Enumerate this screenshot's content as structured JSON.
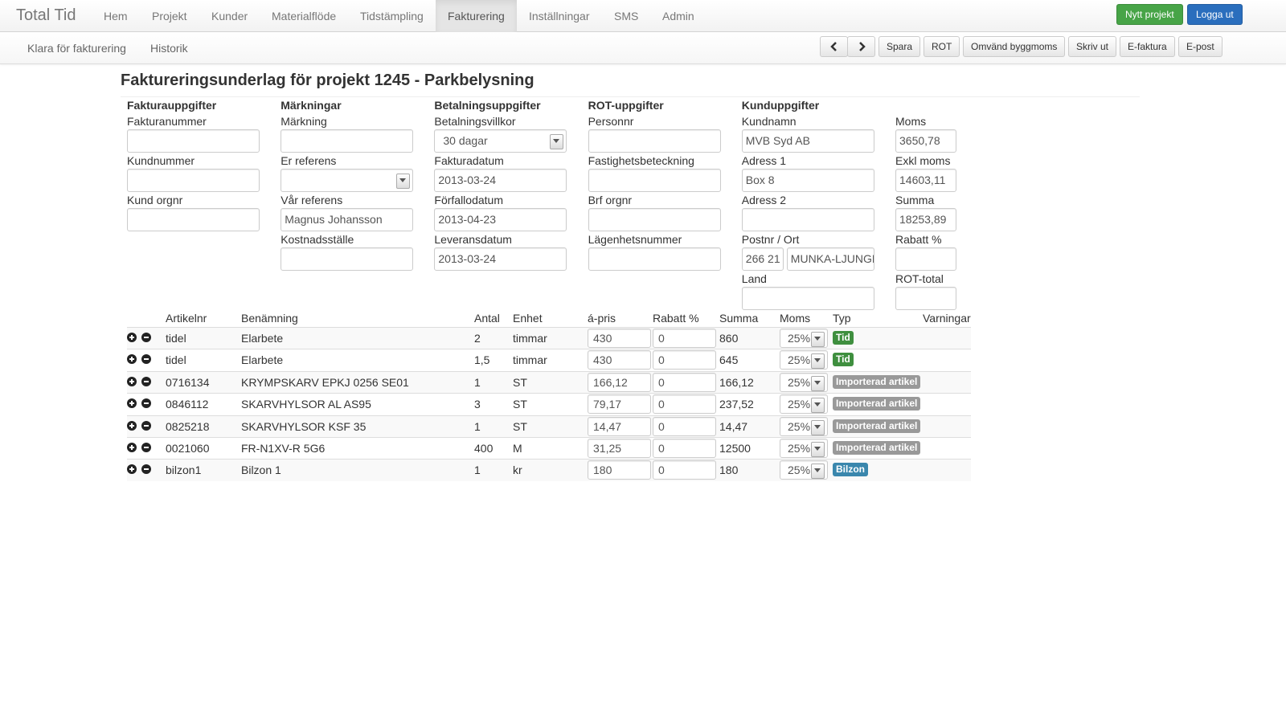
{
  "navbar": {
    "brand": "Total Tid",
    "items": [
      "Hem",
      "Projekt",
      "Kunder",
      "Materialflöde",
      "Tidstämpling",
      "Fakturering",
      "Inställningar",
      "SMS",
      "Admin"
    ],
    "active": 5,
    "buttons": [
      {
        "label": "Nytt projekt",
        "color": "#47a447"
      },
      {
        "label": "Logga ut",
        "color": "#2a6ebd"
      }
    ]
  },
  "subnav": {
    "items": [
      "Klara för fakturering",
      "Historik"
    ],
    "buttons": [
      "Spara",
      "ROT",
      "Omvänd byggmoms",
      "Skriv ut",
      "E-faktura",
      "E-post"
    ]
  },
  "title": "Faktureringsunderlag för projekt 1245 - Parkbelysning",
  "form": {
    "columns": [
      {
        "heading": "Fakturauppgifter",
        "fields": [
          {
            "label": "Fakturanummer"
          },
          {
            "label": "Kundnummer"
          },
          {
            "label": "Kund orgnr"
          }
        ]
      },
      {
        "heading": "Märkningar",
        "fields": [
          {
            "label": "Märkning"
          },
          {
            "label": "Er referens",
            "select": true
          },
          {
            "label": "Vår referens",
            "value": "Magnus Johansson"
          },
          {
            "label": "Kostnadsställe"
          }
        ]
      },
      {
        "heading": "Betalningsuppgifter",
        "fields": [
          {
            "label": "Betalningsvillkor",
            "select": true,
            "value": "30 dagar"
          },
          {
            "label": "Fakturadatum",
            "value": "2013-03-24"
          },
          {
            "label": "Förfallodatum",
            "value": "2013-04-23"
          },
          {
            "label": "Leveransdatum",
            "value": "2013-03-24"
          }
        ]
      },
      {
        "heading": "ROT-uppgifter",
        "fields": [
          {
            "label": "Personnr"
          },
          {
            "label": "Fastighetsbeteckning"
          },
          {
            "label": "Brf orgnr"
          },
          {
            "label": "Lägenhetsnummer"
          }
        ]
      },
      {
        "heading": "Kunduppgifter",
        "fields": [
          {
            "label": "Kundnamn",
            "value": "MVB Syd AB"
          },
          {
            "label": "Adress 1",
            "value": "Box 8"
          },
          {
            "label": "Adress 2"
          },
          {
            "label": "Postnr / Ort",
            "values": [
              "266 21",
              "MUNKA-LJUNGBY"
            ]
          },
          {
            "label": "Land"
          }
        ]
      },
      {
        "fields": [
          {
            "label": "Moms",
            "value": "3650,78"
          },
          {
            "label": "Exkl moms",
            "value": "14603,11"
          },
          {
            "label": "Summa",
            "value": "18253,89"
          },
          {
            "label": "Rabatt %"
          },
          {
            "label": "ROT-total"
          }
        ]
      }
    ]
  },
  "table": {
    "headers": [
      "Artikelnr",
      "Benämning",
      "Antal",
      "Enhet",
      "á-pris",
      "Rabatt %",
      "Summa",
      "Moms",
      "Typ",
      "Varningar"
    ],
    "rows": [
      {
        "cells": [
          "tidel",
          "Elarbete",
          "2",
          "timmar",
          "430",
          "0",
          "860",
          "25%",
          "Tid"
        ],
        "badge_color": "#3f8f3f"
      },
      {
        "cells": [
          "tidel",
          "Elarbete",
          "1,5",
          "timmar",
          "430",
          "0",
          "645",
          "25%",
          "Tid"
        ],
        "badge_color": "#3f8f3f"
      },
      {
        "cells": [
          "0716134",
          "KRYMPSKARV EPKJ 0256 SE01",
          "1",
          "ST",
          "166,12",
          "0",
          "166,12",
          "25%",
          "Importerad artikel"
        ],
        "badge_color": "#999999"
      },
      {
        "cells": [
          "0846112",
          "SKARVHYLSOR AL AS95",
          "3",
          "ST",
          "79,17",
          "0",
          "237,52",
          "25%",
          "Importerad artikel"
        ],
        "badge_color": "#999999"
      },
      {
        "cells": [
          "0825218",
          "SKARVHYLSOR KSF 35",
          "1",
          "ST",
          "14,47",
          "0",
          "14,47",
          "25%",
          "Importerad artikel"
        ],
        "badge_color": "#999999"
      },
      {
        "cells": [
          "0021060",
          "FR-N1XV-R 5G6",
          "400",
          "M",
          "31,25",
          "0",
          "12500",
          "25%",
          "Importerad artikel"
        ],
        "badge_color": "#999999"
      },
      {
        "cells": [
          "bilzon1",
          "Bilzon 1",
          "1",
          "kr",
          "180",
          "0",
          "180",
          "25%",
          "Bilzon"
        ],
        "badge_color": "#3a87ad"
      }
    ]
  }
}
